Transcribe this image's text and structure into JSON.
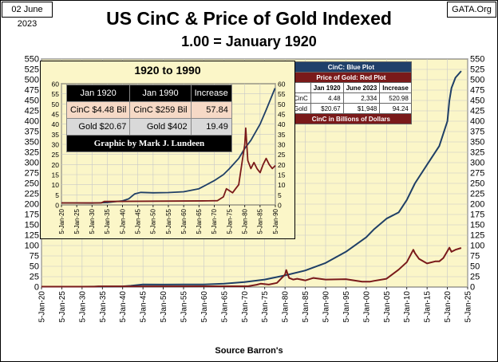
{
  "header": {
    "date": "02 June 2023",
    "site": "GATA.Org",
    "title": "US CinC & Price of Gold Indexed",
    "subtitle": "1.00 = January 1920",
    "source": "Source Barron's"
  },
  "chart_data": [
    {
      "type": "line",
      "title": "US CinC & Price of Gold Indexed",
      "subtitle": "1.00 = January 1920",
      "ylim": [
        0,
        550
      ],
      "yticks": [
        0,
        25,
        50,
        75,
        100,
        125,
        150,
        175,
        200,
        225,
        250,
        275,
        300,
        325,
        350,
        375,
        400,
        425,
        450,
        475,
        500,
        525,
        550
      ],
      "xlim": [
        1920,
        2025
      ],
      "xtick_labels": [
        "5-Jan-20",
        "5-Jan-25",
        "5-Jan-30",
        "5-Jan-35",
        "5-Jan-40",
        "5-Jan-45",
        "5-Jan-50",
        "5-Jan-55",
        "5-Jan-60",
        "5-Jan-65",
        "5-Jan-70",
        "5-Jan-75",
        "5-Jan-80",
        "5-Jan-85",
        "5-Jan-90",
        "5-Jan-95",
        "5-Jan-00",
        "5-Jan-05",
        "5-Jan-10",
        "5-Jan-15",
        "5-Jan-20",
        "5-Jan-25"
      ],
      "series": [
        {
          "name": "CinC",
          "color": "#1f3f66",
          "x": [
            1920,
            1925,
            1930,
            1933,
            1940,
            1942,
            1945,
            1950,
            1955,
            1960,
            1965,
            1970,
            1975,
            1980,
            1985,
            1990,
            1995,
            2000,
            2002,
            2005,
            2008,
            2010,
            2012,
            2015,
            2018,
            2019,
            2020,
            2020.5,
            2021,
            2022,
            2023.4
          ],
          "y": [
            1,
            0.9,
            0.9,
            1.2,
            1.8,
            3,
            6.1,
            6,
            6.1,
            6.4,
            8,
            12,
            18,
            28,
            40,
            58,
            85,
            120,
            140,
            165,
            180,
            210,
            250,
            295,
            340,
            370,
            400,
            450,
            480,
            505,
            520.98
          ]
        },
        {
          "name": "Price of Gold",
          "color": "#7a1a1a",
          "x": [
            1920,
            1933,
            1934,
            1945,
            1968,
            1971,
            1973,
            1974,
            1976,
            1978,
            1980,
            1980.3,
            1981,
            1982,
            1983,
            1985,
            1987,
            1990,
            1995,
            1999,
            2001,
            2002,
            2005,
            2008,
            2010,
            2011.6,
            2012,
            2013,
            2015,
            2017,
            2018,
            2019,
            2020.5,
            2021,
            2022,
            2023.4
          ],
          "y": [
            1,
            1,
            1.7,
            1.7,
            2,
            2.1,
            5.5,
            8,
            6,
            10,
            30,
            41,
            22,
            18,
            20,
            16,
            22,
            18,
            19,
            13,
            13,
            15,
            20,
            42,
            60,
            90,
            82,
            68,
            57,
            62,
            62,
            70,
            95,
            85,
            90,
            94.24
          ]
        }
      ],
      "legend": {
        "cinc_label": "CinC: Blue Plot",
        "gold_label": "Price of Gold: Red Plot",
        "headers": [
          "",
          "Jan 1920",
          "June 2023",
          "Increase"
        ],
        "rows": [
          [
            "CinC",
            "4.48",
            "2,334",
            "520.98"
          ],
          [
            "Gold",
            "$20.67",
            "$1,948",
            "94.24"
          ]
        ],
        "footer": "CinC in Billions of Dollars"
      }
    },
    {
      "type": "line",
      "title": "1920 to 1990",
      "ylim": [
        0,
        60
      ],
      "yticks": [
        0,
        5,
        10,
        15,
        20,
        25,
        30,
        35,
        40,
        45,
        50,
        55,
        60
      ],
      "xlim": [
        1920,
        1990
      ],
      "xtick_labels": [
        "5-Jan-20",
        "5-Jan-25",
        "5-Jan-30",
        "5-Jan-35",
        "5-Jan-40",
        "5-Jan-45",
        "5-Jan-50",
        "5-Jan-55",
        "5-Jan-60",
        "5-Jan-65",
        "5-Jan-70",
        "5-Jan-75",
        "5-Jan-80",
        "5-Jan-85",
        "5-Jan-90"
      ],
      "series": [
        {
          "name": "CinC",
          "color": "#1f3f66",
          "x": [
            1920,
            1930,
            1935,
            1940,
            1942,
            1944,
            1946,
            1950,
            1955,
            1960,
            1965,
            1970,
            1973,
            1975,
            1978,
            1980,
            1982,
            1985,
            1987,
            1989.9
          ],
          "y": [
            1,
            0.9,
            1.2,
            2,
            3,
            5.5,
            6.2,
            6,
            6.1,
            6.5,
            8,
            12,
            15,
            18,
            23,
            28,
            32,
            40,
            47,
            57.8
          ]
        },
        {
          "name": "Price of Gold",
          "color": "#7a1a1a",
          "x": [
            1920,
            1933,
            1934,
            1968,
            1971,
            1973,
            1974,
            1975,
            1976,
            1977,
            1978,
            1979,
            1980,
            1980.3,
            1981,
            1982,
            1983,
            1984,
            1985,
            1986,
            1987,
            1988,
            1989,
            1990
          ],
          "y": [
            1,
            1,
            1.7,
            2,
            2.1,
            4,
            8,
            7,
            6,
            8,
            10,
            20,
            30,
            38,
            22,
            18,
            21,
            18,
            16,
            20,
            23,
            20,
            18,
            19.5
          ]
        }
      ],
      "table": {
        "headers": [
          "Jan 1920",
          "Jan 1990",
          "Increase"
        ],
        "cinc": [
          "CinC $4.48 Bil",
          "CinC $259 Bil",
          "57.84"
        ],
        "gold": [
          "Gold $20.67",
          "Gold $402",
          "19.49"
        ],
        "credit": "Graphic by Mark J. Lundeen"
      }
    }
  ]
}
